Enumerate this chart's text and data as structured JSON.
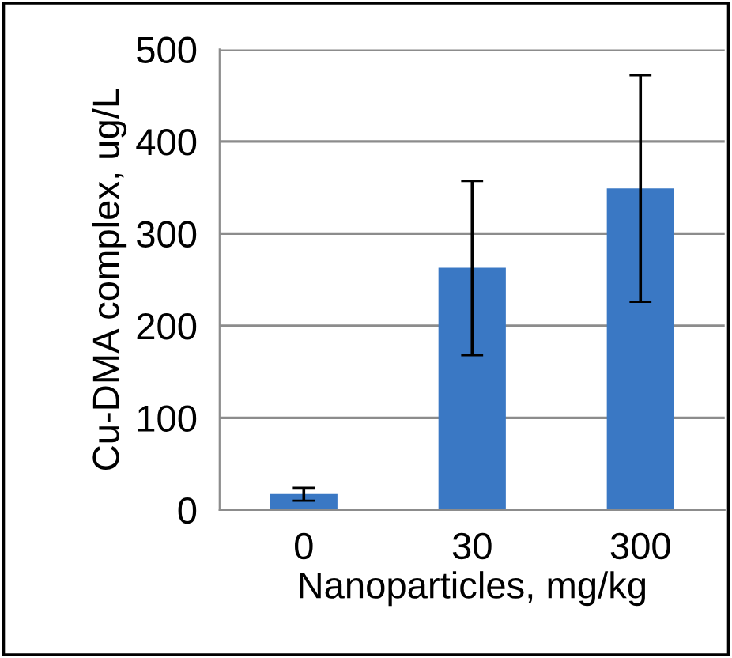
{
  "chart_data": {
    "type": "bar",
    "xlabel": "Nanoparticles, mg/kg",
    "ylabel": "Cu-DMA complex, ug/L",
    "categories": [
      "0",
      "30",
      "300"
    ],
    "values": [
      18,
      263,
      349
    ],
    "errors": [
      [
        10,
        24
      ],
      [
        168,
        357
      ],
      [
        226,
        472
      ]
    ],
    "color": "#3a78c4",
    "ylim": [
      0,
      500
    ],
    "yticks": [
      0,
      100,
      200,
      300,
      400,
      500
    ],
    "grid": "y"
  }
}
